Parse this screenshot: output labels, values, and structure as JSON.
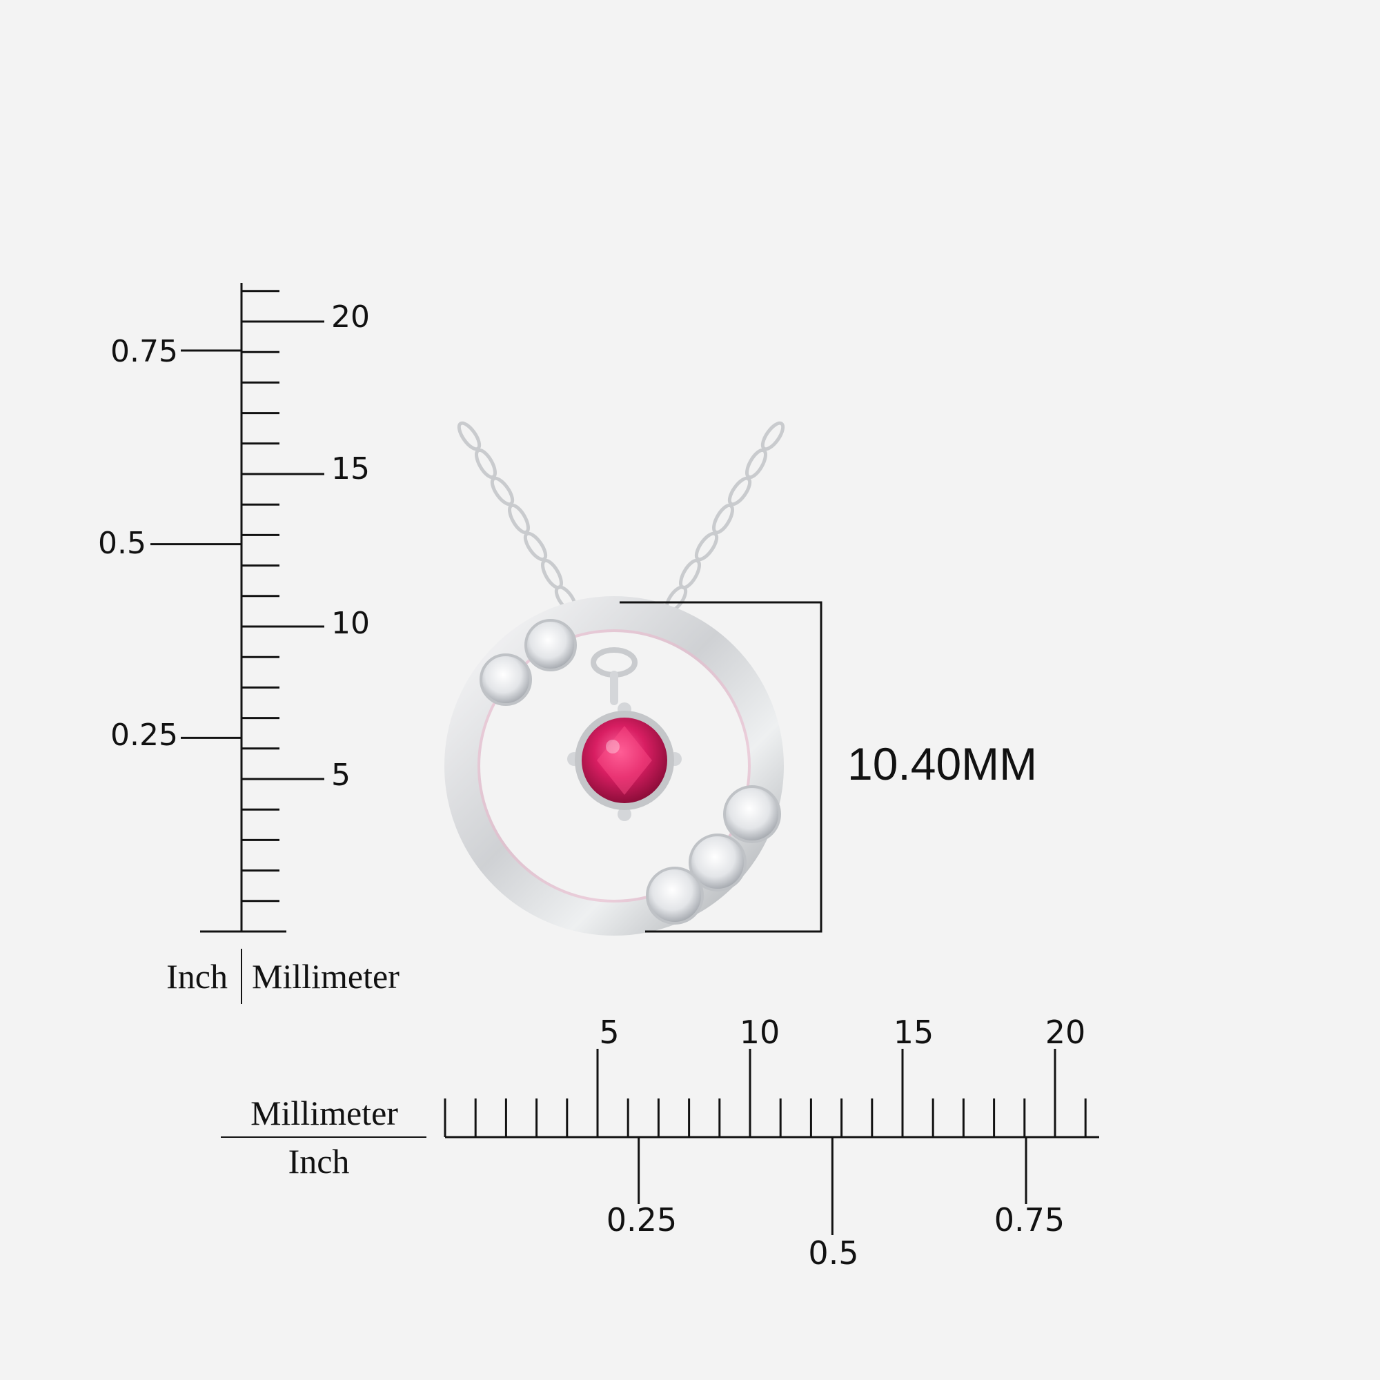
{
  "vertical_ruler": {
    "mm_labels": [
      "5",
      "10",
      "15",
      "20"
    ],
    "inch_labels": [
      "0.25",
      "0.5",
      "0.75"
    ],
    "unit_left": "Inch",
    "unit_right": "Millimeter"
  },
  "horizontal_ruler": {
    "mm_labels": [
      "5",
      "10",
      "15",
      "20"
    ],
    "inch_labels": [
      "0.25",
      "0.5",
      "0.75"
    ],
    "unit_top": "Millimeter",
    "unit_bottom": "Inch"
  },
  "product": {
    "dimension_label": "10.40MM",
    "gem_color": "#d81e62",
    "metal_color": "#d9dbde"
  }
}
